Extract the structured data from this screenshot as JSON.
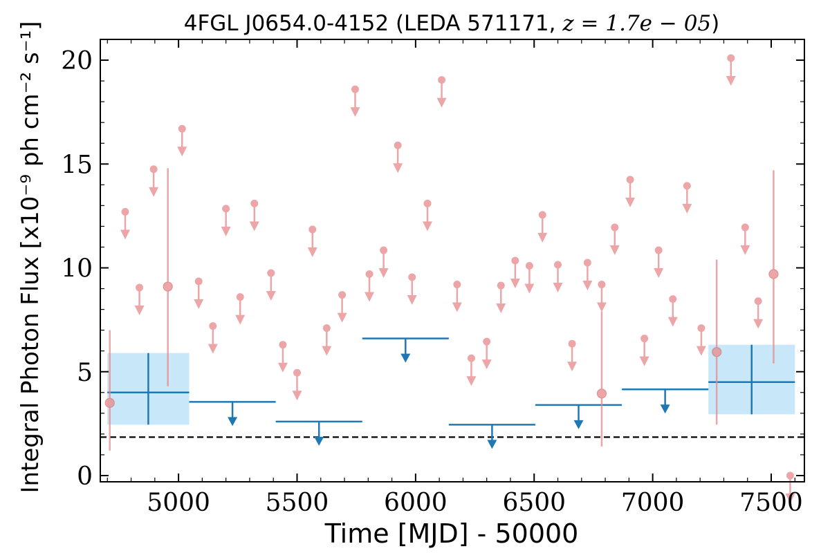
{
  "chart_data": {
    "type": "scatter",
    "title": "4FGL J0654.0-4152 (LEDA 571171, z = 1.7e − 05)",
    "xlabel": "Time [MJD] - 50000",
    "ylabel": "Integral Photon Flux [x10⁻⁹ ph cm⁻² s⁻¹]",
    "xlim": [
      4670,
      7640
    ],
    "ylim": [
      -0.3,
      21
    ],
    "xticks": [
      5000,
      5500,
      6000,
      6500,
      7000,
      7500
    ],
    "xtick_labels": [
      "5000",
      "5500",
      "6000",
      "6500",
      "7000",
      "7500"
    ],
    "yticks": [
      0,
      5,
      10,
      15,
      20
    ],
    "ytick_labels": [
      "0",
      "5",
      "10",
      "15",
      "20"
    ],
    "grid": false,
    "colors": {
      "short_bin": "#e8898b",
      "long_bin": "#1f77b4",
      "long_bin_band": "#c8e8f9",
      "reference_line": "#000000"
    },
    "reference_line": {
      "y": 1.85,
      "style": "dashed"
    },
    "series": [
      {
        "kind": "short-bin-detections",
        "points": [
          {
            "x": 4710,
            "y": 3.5,
            "ylo": 1.2,
            "yhi": 7.0
          },
          {
            "x": 4955,
            "y": 9.1,
            "ylo": 4.3,
            "yhi": 14.8
          },
          {
            "x": 6785,
            "y": 3.95,
            "ylo": 1.4,
            "yhi": 7.9
          },
          {
            "x": 7270,
            "y": 5.95,
            "ylo": 2.45,
            "yhi": 10.4
          },
          {
            "x": 7510,
            "y": 9.7,
            "ylo": 5.4,
            "yhi": 14.7
          }
        ]
      },
      {
        "kind": "short-bin-upper-limits",
        "x": [
          4775,
          4835,
          4895,
          5015,
          5085,
          5145,
          5200,
          5260,
          5320,
          5390,
          5440,
          5500,
          5565,
          5625,
          5690,
          5745,
          5805,
          5865,
          5925,
          5985,
          6050,
          6110,
          6175,
          6235,
          6300,
          6360,
          6420,
          6480,
          6535,
          6600,
          6660,
          6725,
          6785,
          6840,
          6905,
          6965,
          7025,
          7085,
          7145,
          7205,
          7330,
          7390,
          7445,
          7580
        ],
        "y": [
          12.7,
          9.05,
          14.75,
          16.7,
          9.35,
          7.2,
          12.85,
          8.6,
          13.1,
          9.75,
          6.3,
          4.95,
          11.85,
          7.1,
          8.7,
          18.6,
          9.7,
          10.85,
          15.9,
          9.55,
          13.1,
          19.05,
          9.2,
          5.65,
          6.45,
          9.15,
          10.35,
          10.1,
          12.55,
          10.15,
          6.35,
          10.25,
          9.2,
          11.95,
          14.25,
          6.6,
          10.85,
          8.5,
          13.95,
          7.1,
          20.1,
          11.95,
          8.4,
          0
        ]
      },
      {
        "kind": "long-bin-detections",
        "bins": [
          {
            "x0": 4700,
            "x1": 5045,
            "y": 4.0,
            "ylo": 2.45,
            "yhi": 5.9
          },
          {
            "x0": 7235,
            "x1": 7600,
            "y": 4.5,
            "ylo": 2.95,
            "yhi": 6.3
          }
        ]
      },
      {
        "kind": "long-bin-upper-limits",
        "bins": [
          {
            "x0": 5045,
            "x1": 5410,
            "y": 3.55
          },
          {
            "x0": 5410,
            "x1": 5775,
            "y": 2.6
          },
          {
            "x0": 5775,
            "x1": 6140,
            "y": 6.6
          },
          {
            "x0": 6140,
            "x1": 6505,
            "y": 2.45
          },
          {
            "x0": 6505,
            "x1": 6870,
            "y": 3.4
          },
          {
            "x0": 6870,
            "x1": 7235,
            "y": 4.15
          }
        ]
      }
    ]
  }
}
